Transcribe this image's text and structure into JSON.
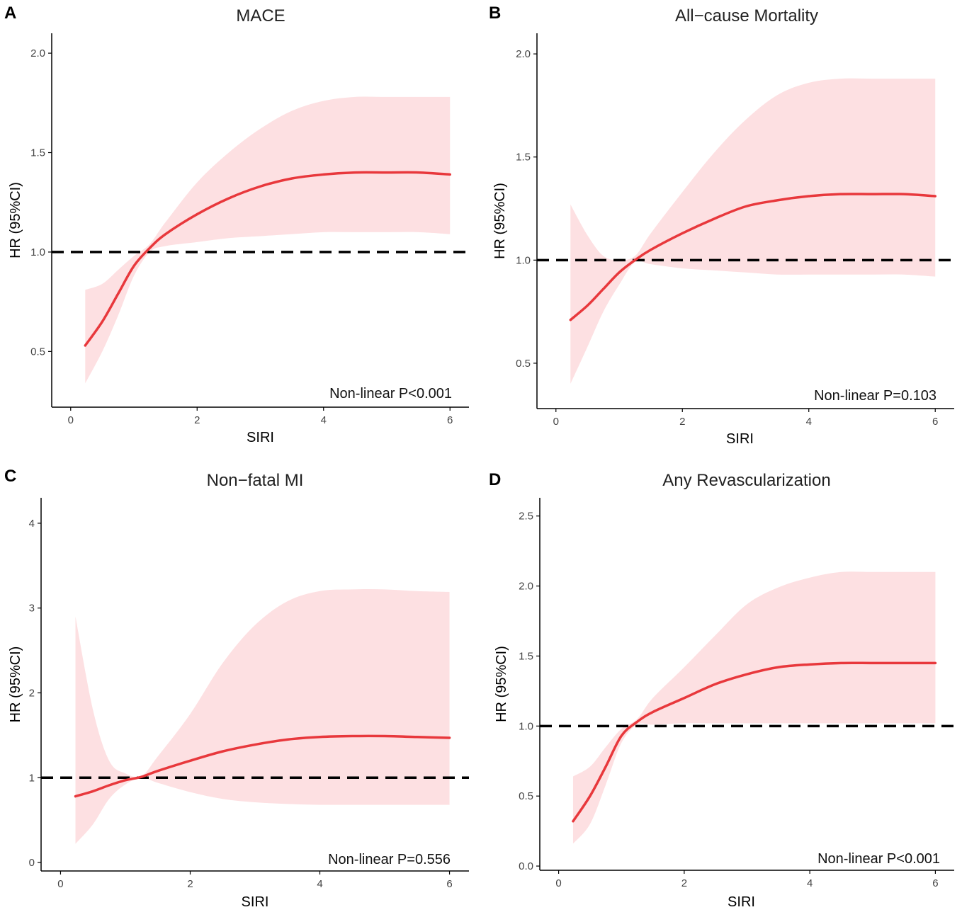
{
  "colors": {
    "curve": "#e8383c",
    "band": "#fde0e2",
    "reference": "#000000",
    "axis": "#000000"
  },
  "chart_data": [
    {
      "panel": "A",
      "type": "line",
      "title": "MACE",
      "xlabel": "SIRI",
      "ylabel": "HR (95%CI)",
      "xlim": [
        -0.3,
        6.3
      ],
      "ylim": [
        0.22,
        2.1
      ],
      "xticks": [
        0,
        2,
        4,
        6
      ],
      "yticks": [
        0.5,
        1.0,
        1.5,
        2.0
      ],
      "ytick_labels": [
        "0.5",
        "1.0",
        "1.5",
        "2.0"
      ],
      "reference_line": 1.0,
      "annotation": "Non-linear P<0.001",
      "x": [
        0.23,
        0.5,
        0.75,
        1.0,
        1.25,
        1.5,
        2.0,
        2.5,
        3.0,
        3.5,
        4.0,
        4.5,
        5.0,
        5.5,
        6.0
      ],
      "hr": [
        0.53,
        0.65,
        0.79,
        0.93,
        1.02,
        1.09,
        1.19,
        1.27,
        1.33,
        1.37,
        1.39,
        1.4,
        1.4,
        1.4,
        1.39
      ],
      "lower": [
        0.34,
        0.5,
        0.68,
        0.88,
        1.0,
        1.03,
        1.05,
        1.07,
        1.08,
        1.09,
        1.1,
        1.1,
        1.1,
        1.1,
        1.09
      ],
      "upper": [
        0.81,
        0.84,
        0.91,
        0.98,
        1.04,
        1.15,
        1.35,
        1.5,
        1.62,
        1.71,
        1.76,
        1.78,
        1.78,
        1.78,
        1.78
      ]
    },
    {
      "panel": "B",
      "type": "line",
      "title": "All−cause Mortality",
      "xlabel": "SIRI",
      "ylabel": "HR (95%CI)",
      "xlim": [
        -0.3,
        6.3
      ],
      "ylim": [
        0.28,
        2.1
      ],
      "xticks": [
        0,
        2,
        4,
        6
      ],
      "yticks": [
        0.5,
        1.0,
        1.5,
        2.0
      ],
      "ytick_labels": [
        "0.5",
        "1.0",
        "1.5",
        "2.0"
      ],
      "reference_line": 1.0,
      "annotation": "Non-linear P=0.103",
      "x": [
        0.23,
        0.5,
        0.75,
        1.0,
        1.25,
        1.5,
        2.0,
        2.5,
        3.0,
        3.5,
        4.0,
        4.5,
        5.0,
        5.5,
        6.0
      ],
      "hr": [
        0.71,
        0.78,
        0.86,
        0.94,
        1.0,
        1.05,
        1.13,
        1.2,
        1.26,
        1.29,
        1.31,
        1.32,
        1.32,
        1.32,
        1.31
      ],
      "lower": [
        0.4,
        0.58,
        0.75,
        0.88,
        0.99,
        0.98,
        0.96,
        0.95,
        0.94,
        0.93,
        0.93,
        0.93,
        0.93,
        0.93,
        0.92
      ],
      "upper": [
        1.27,
        1.12,
        1.02,
        1.0,
        1.02,
        1.13,
        1.33,
        1.52,
        1.68,
        1.8,
        1.86,
        1.88,
        1.88,
        1.88,
        1.88
      ]
    },
    {
      "panel": "C",
      "type": "line",
      "title": "Non−fatal MI",
      "xlabel": "SIRI",
      "ylabel": "HR (95%CI)",
      "xlim": [
        -0.3,
        6.3
      ],
      "ylim": [
        -0.1,
        4.3
      ],
      "xticks": [
        0,
        2,
        4,
        6
      ],
      "yticks": [
        0,
        1,
        2,
        3,
        4
      ],
      "ytick_labels": [
        "0",
        "1",
        "2",
        "3",
        "4"
      ],
      "reference_line": 1.0,
      "annotation": "Non-linear P=0.556",
      "x": [
        0.23,
        0.5,
        0.75,
        1.0,
        1.25,
        1.5,
        2.0,
        2.5,
        3.0,
        3.5,
        4.0,
        4.5,
        5.0,
        5.5,
        6.0
      ],
      "hr": [
        0.78,
        0.84,
        0.91,
        0.97,
        1.01,
        1.08,
        1.2,
        1.31,
        1.39,
        1.45,
        1.48,
        1.49,
        1.49,
        1.48,
        1.47
      ],
      "lower": [
        0.22,
        0.45,
        0.75,
        0.92,
        1.0,
        0.94,
        0.83,
        0.75,
        0.71,
        0.69,
        0.68,
        0.68,
        0.68,
        0.68,
        0.68
      ],
      "upper": [
        2.9,
        1.8,
        1.2,
        1.05,
        1.02,
        1.25,
        1.75,
        2.35,
        2.8,
        3.08,
        3.2,
        3.22,
        3.22,
        3.2,
        3.19
      ]
    },
    {
      "panel": "D",
      "type": "line",
      "title": "Any Revascularization",
      "xlabel": "SIRI",
      "ylabel": "HR (95%CI)",
      "xlim": [
        -0.3,
        6.3
      ],
      "ylim": [
        -0.03,
        2.63
      ],
      "xticks": [
        0,
        2,
        4,
        6
      ],
      "yticks": [
        0.0,
        0.5,
        1.0,
        1.5,
        2.0,
        2.5
      ],
      "ytick_labels": [
        "0.0",
        "0.5",
        "1.0",
        "1.5",
        "2.0",
        "2.5"
      ],
      "reference_line": 1.0,
      "annotation": "Non-linear P<0.001",
      "x": [
        0.23,
        0.5,
        0.75,
        1.0,
        1.25,
        1.5,
        2.0,
        2.5,
        3.0,
        3.5,
        4.0,
        4.5,
        5.0,
        5.5,
        6.0
      ],
      "hr": [
        0.32,
        0.5,
        0.71,
        0.93,
        1.03,
        1.1,
        1.2,
        1.3,
        1.37,
        1.42,
        1.44,
        1.45,
        1.45,
        1.45,
        1.45
      ],
      "lower": [
        0.16,
        0.3,
        0.58,
        0.88,
        1.01,
        1.01,
        1.02,
        1.02,
        1.02,
        1.02,
        1.02,
        1.02,
        1.02,
        1.02,
        1.02
      ],
      "upper": [
        0.64,
        0.71,
        0.85,
        0.98,
        1.05,
        1.2,
        1.42,
        1.65,
        1.87,
        1.99,
        2.06,
        2.1,
        2.1,
        2.1,
        2.1
      ]
    }
  ]
}
